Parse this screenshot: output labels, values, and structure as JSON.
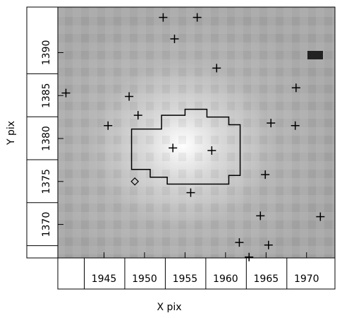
{
  "chart_data": {
    "type": "scatter",
    "x_label": "X pix",
    "y_label": "Y pix",
    "xlim": [
      1939.3,
      1973.5
    ],
    "ylim": [
      1366.1,
      1395.3
    ],
    "xticks": [
      1945,
      1950,
      1955,
      1960,
      1965,
      1970
    ],
    "yticks": [
      1370,
      1375,
      1380,
      1385,
      1390
    ],
    "series": [
      {
        "marker": "plus",
        "color": "#000000",
        "x": [
          1952.3,
          1956.5,
          1953.7,
          1958.9,
          1940.3,
          1948.1,
          1968.7,
          1949.2,
          1945.5,
          1965.6,
          1968.6,
          1953.5,
          1958.3,
          1964.9,
          1955.7,
          1964.3,
          1971.7,
          1961.7,
          1965.3,
          1962.9
        ],
        "y": [
          1394.1,
          1394.1,
          1391.6,
          1388.2,
          1385.3,
          1384.9,
          1385.9,
          1382.7,
          1381.5,
          1381.8,
          1381.5,
          1378.9,
          1378.6,
          1375.8,
          1373.7,
          1371.0,
          1370.9,
          1367.9,
          1367.6,
          1366.2
        ]
      },
      {
        "marker": "diamond",
        "color": "#000000",
        "x": [
          1948.8
        ],
        "y": [
          1375.0
        ]
      },
      {
        "marker": "contour",
        "color": "#000000",
        "x": [
          1948.4,
          1952.1,
          1952.1,
          1955.0,
          1955.0,
          1957.7,
          1957.7,
          1960.4,
          1960.4,
          1961.8,
          1961.8,
          1960.4,
          1960.4,
          1952.8,
          1952.8,
          1950.7,
          1950.7,
          1948.4
        ],
        "y": [
          1381.1,
          1381.1,
          1382.7,
          1382.7,
          1383.4,
          1383.4,
          1382.5,
          1382.5,
          1381.6,
          1381.6,
          1375.7,
          1375.7,
          1374.7,
          1374.7,
          1375.5,
          1375.5,
          1376.4,
          1376.4
        ]
      }
    ]
  }
}
